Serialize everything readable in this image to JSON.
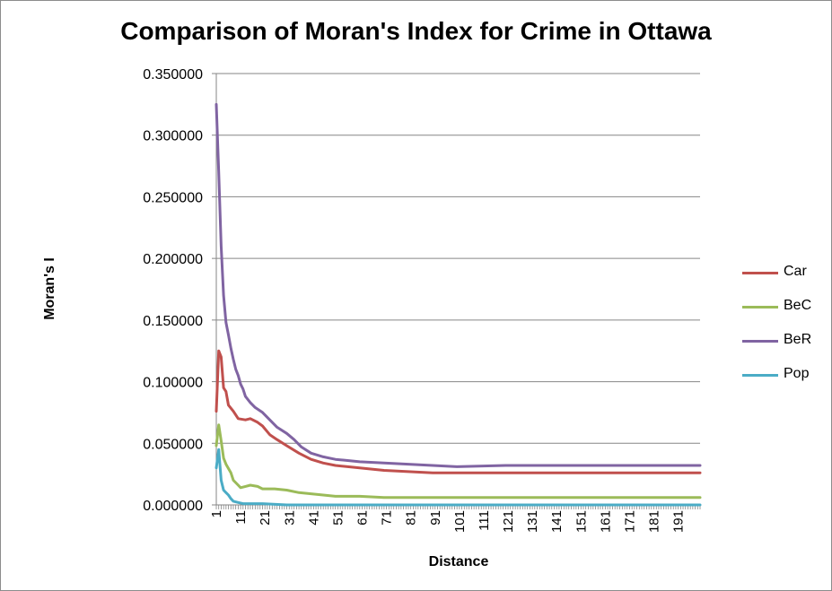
{
  "chart_data": {
    "type": "line",
    "title": "Comparison of Moran's Index for Crime in Ottawa",
    "xlabel": "Distance",
    "ylabel": "Moran's I",
    "ylim": [
      0,
      0.35
    ],
    "yticks": [
      "0.000000",
      "0.050000",
      "0.100000",
      "0.150000",
      "0.200000",
      "0.250000",
      "0.300000",
      "0.350000"
    ],
    "x_range": [
      1,
      200
    ],
    "xticks": [
      "1",
      "11",
      "21",
      "31",
      "41",
      "51",
      "61",
      "71",
      "81",
      "91",
      "101",
      "111",
      "121",
      "131",
      "141",
      "151",
      "161",
      "171",
      "181",
      "191"
    ],
    "grid": "horizontal",
    "legend_position": "right",
    "series": [
      {
        "name": "Car",
        "color": "#c0504d",
        "points": [
          [
            1,
            0.076
          ],
          [
            2,
            0.125
          ],
          [
            3,
            0.12
          ],
          [
            4,
            0.095
          ],
          [
            5,
            0.092
          ],
          [
            6,
            0.081
          ],
          [
            8,
            0.076
          ],
          [
            10,
            0.07
          ],
          [
            13,
            0.069
          ],
          [
            15,
            0.07
          ],
          [
            18,
            0.067
          ],
          [
            20,
            0.064
          ],
          [
            23,
            0.057
          ],
          [
            26,
            0.053
          ],
          [
            30,
            0.048
          ],
          [
            35,
            0.042
          ],
          [
            40,
            0.037
          ],
          [
            45,
            0.034
          ],
          [
            50,
            0.032
          ],
          [
            55,
            0.031
          ],
          [
            60,
            0.03
          ],
          [
            70,
            0.028
          ],
          [
            80,
            0.027
          ],
          [
            90,
            0.026
          ],
          [
            200,
            0.026
          ]
        ]
      },
      {
        "name": "BeC",
        "color": "#9bbb59",
        "points": [
          [
            1,
            0.048
          ],
          [
            2,
            0.065
          ],
          [
            3,
            0.052
          ],
          [
            4,
            0.038
          ],
          [
            5,
            0.033
          ],
          [
            7,
            0.026
          ],
          [
            8,
            0.02
          ],
          [
            10,
            0.016
          ],
          [
            11,
            0.014
          ],
          [
            13,
            0.015
          ],
          [
            15,
            0.016
          ],
          [
            18,
            0.015
          ],
          [
            20,
            0.013
          ],
          [
            25,
            0.013
          ],
          [
            30,
            0.012
          ],
          [
            35,
            0.01
          ],
          [
            40,
            0.009
          ],
          [
            45,
            0.008
          ],
          [
            50,
            0.007
          ],
          [
            60,
            0.007
          ],
          [
            70,
            0.006
          ],
          [
            200,
            0.006
          ]
        ]
      },
      {
        "name": "BeR",
        "color": "#8064a2",
        "points": [
          [
            1,
            0.325
          ],
          [
            2,
            0.27
          ],
          [
            3,
            0.21
          ],
          [
            4,
            0.17
          ],
          [
            5,
            0.148
          ],
          [
            6,
            0.138
          ],
          [
            7,
            0.127
          ],
          [
            8,
            0.118
          ],
          [
            9,
            0.11
          ],
          [
            10,
            0.105
          ],
          [
            11,
            0.098
          ],
          [
            12,
            0.094
          ],
          [
            13,
            0.088
          ],
          [
            15,
            0.083
          ],
          [
            17,
            0.079
          ],
          [
            20,
            0.075
          ],
          [
            23,
            0.069
          ],
          [
            26,
            0.063
          ],
          [
            30,
            0.058
          ],
          [
            33,
            0.053
          ],
          [
            36,
            0.047
          ],
          [
            40,
            0.042
          ],
          [
            45,
            0.039
          ],
          [
            50,
            0.037
          ],
          [
            55,
            0.036
          ],
          [
            60,
            0.035
          ],
          [
            70,
            0.034
          ],
          [
            80,
            0.033
          ],
          [
            90,
            0.032
          ],
          [
            100,
            0.031
          ],
          [
            120,
            0.032
          ],
          [
            200,
            0.032
          ]
        ]
      },
      {
        "name": "Pop",
        "color": "#4bacc6",
        "points": [
          [
            1,
            0.03
          ],
          [
            2,
            0.045
          ],
          [
            3,
            0.02
          ],
          [
            4,
            0.012
          ],
          [
            5,
            0.01
          ],
          [
            6,
            0.008
          ],
          [
            7,
            0.005
          ],
          [
            8,
            0.003
          ],
          [
            10,
            0.002
          ],
          [
            12,
            0.001
          ],
          [
            15,
            0.001
          ],
          [
            20,
            0.001
          ],
          [
            30,
            0.0
          ],
          [
            50,
            0.0
          ],
          [
            200,
            0.0
          ]
        ]
      }
    ]
  }
}
